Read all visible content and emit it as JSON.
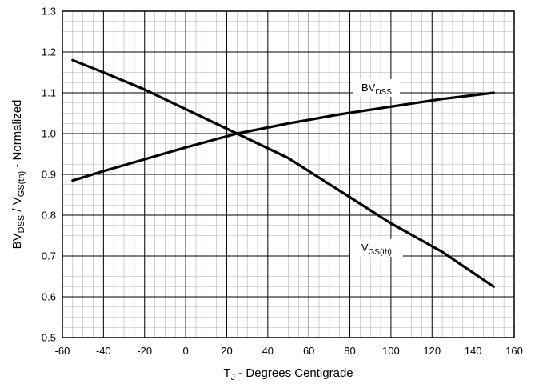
{
  "chart_data": {
    "type": "line",
    "xlabel": {
      "main": "T",
      "sub": "J",
      "rest": " - Degrees Centigrade"
    },
    "ylabel": {
      "p1": "BV",
      "s1": "DSS",
      "p2": " / V",
      "s2": "GS(th)",
      "p3": " - Normalized"
    },
    "xlim": [
      -60,
      160
    ],
    "ylim": [
      0.5,
      1.3
    ],
    "x_ticks": [
      "-60",
      "-40",
      "-20",
      "0",
      "20",
      "40",
      "60",
      "80",
      "100",
      "120",
      "140",
      "160"
    ],
    "y_ticks": [
      "0.5",
      "0.6",
      "0.7",
      "0.8",
      "0.9",
      "1.0",
      "1.1",
      "1.2",
      "1.3"
    ],
    "x_tick_values": [
      -60,
      -40,
      -20,
      0,
      20,
      40,
      60,
      80,
      100,
      120,
      140,
      160
    ],
    "y_tick_values": [
      0.5,
      0.6,
      0.7,
      0.8,
      0.9,
      1.0,
      1.1,
      1.2,
      1.3
    ],
    "grid": true,
    "series": [
      {
        "name": "BVDSS",
        "x": [
          -55,
          -40,
          -20,
          0,
          25,
          50,
          75,
          100,
          125,
          150
        ],
        "y": [
          0.885,
          0.908,
          0.937,
          0.966,
          1.0,
          1.025,
          1.047,
          1.066,
          1.085,
          1.1
        ]
      },
      {
        "name": "VGS(th)",
        "x": [
          -55,
          -40,
          -20,
          0,
          25,
          50,
          75,
          100,
          125,
          150
        ],
        "y": [
          1.18,
          1.15,
          1.108,
          1.06,
          1.0,
          0.94,
          0.86,
          0.78,
          0.71,
          0.625
        ]
      }
    ],
    "annotations": [
      {
        "main": "BV",
        "sub": "DSS",
        "x": 93,
        "y": 1.11
      },
      {
        "main": "V",
        "sub": "GS(th)",
        "x": 93,
        "y": 0.718
      }
    ],
    "colors": {
      "line": "#000000",
      "grid_major": "#000000",
      "grid_minor": "#b0b0b0"
    }
  }
}
